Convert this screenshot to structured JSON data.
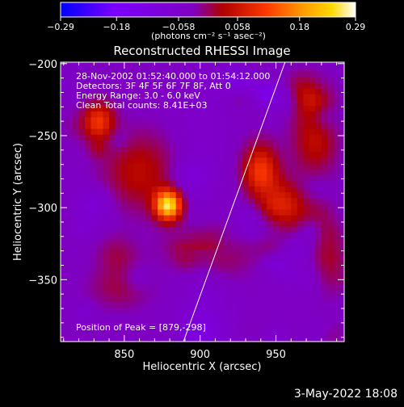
{
  "chart_data": {
    "type": "heatmap",
    "title": "Reconstructed RHESSI Image",
    "xlabel": "Heliocentric X (arcsec)",
    "ylabel": "Heliocentric Y (arcsec)",
    "xlim": [
      808,
      995
    ],
    "ylim": [
      -393,
      -199
    ],
    "x_ticks": [
      850,
      900,
      950
    ],
    "x_tick_labels": [
      "850",
      "900",
      "950"
    ],
    "y_ticks": [
      -200,
      -250,
      -300,
      -350
    ],
    "y_tick_labels": [
      "−200",
      "−250",
      "−300",
      "−350"
    ],
    "colorbar": {
      "range": [
        -0.29,
        0.29
      ],
      "ticks": [
        -0.29,
        -0.18,
        -0.058,
        0.058,
        0.18,
        0.29
      ],
      "tick_labels": [
        "−0.29",
        "−0.18",
        "−0.058",
        "0.058",
        "0.18",
        "0.29"
      ],
      "units": "(photons cm⁻² s⁻¹ asec⁻²)",
      "colors": [
        "#0000ff",
        "#7a00ff",
        "#7f00c0",
        "#b00000",
        "#ff3a00",
        "#ff9a00",
        "#ffd800",
        "#ffffff"
      ]
    },
    "annotations": [
      "28-Nov-2002 01:52:40.000 to 01:54:12.000",
      "Detectors: 3F 4F 5F 6F 7F 8F, Att 0",
      "Energy Range: 3.0 - 6.0 keV",
      "Clean     Total counts: 8.41E+03"
    ],
    "peak_label": "Position of Peak = [879,-298]",
    "peak": {
      "x": 879,
      "y": -298,
      "value": 0.29
    },
    "sources": [
      {
        "x": 879,
        "y": -298,
        "value": 0.29,
        "sx": 6,
        "sy": 7
      },
      {
        "x": 833,
        "y": -240,
        "value": 0.18,
        "sx": 7,
        "sy": 9
      },
      {
        "x": 940,
        "y": -275,
        "value": 0.19,
        "sx": 8,
        "sy": 13
      },
      {
        "x": 955,
        "y": -300,
        "value": 0.15,
        "sx": 10,
        "sy": 12
      },
      {
        "x": 860,
        "y": -275,
        "value": 0.1,
        "sx": 16,
        "sy": 18
      },
      {
        "x": 905,
        "y": -330,
        "value": 0.09,
        "sx": 18,
        "sy": 14
      },
      {
        "x": 975,
        "y": -250,
        "value": 0.1,
        "sx": 10,
        "sy": 20
      },
      {
        "x": 848,
        "y": -355,
        "value": 0.06,
        "sx": 14,
        "sy": 10
      },
      {
        "x": 985,
        "y": -335,
        "value": 0.07,
        "sx": 8,
        "sy": 16
      }
    ],
    "limb_line": {
      "x": [
        889,
        956
      ],
      "y": [
        -393,
        -199
      ]
    },
    "date_stamp": "3-May-2022 18:08"
  }
}
